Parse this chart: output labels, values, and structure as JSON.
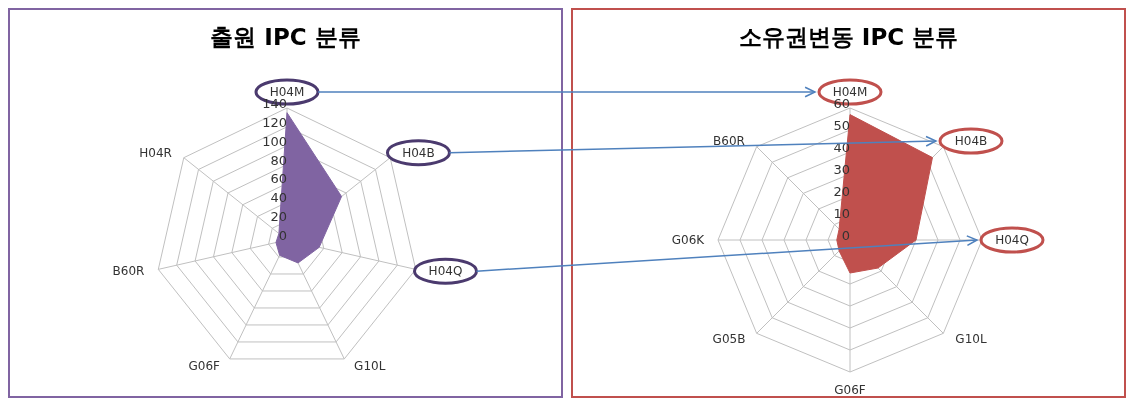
{
  "chart_data": [
    {
      "type": "radar",
      "title": "출원 IPC 분류",
      "categories": [
        "H04M",
        "H04B",
        "H04Q",
        "G10L",
        "G06F",
        "B60R",
        "H04R"
      ],
      "series": [
        {
          "color": "#8064a2",
          "values": [
            135,
            74,
            35,
            27,
            18,
            12,
            11
          ]
        }
      ],
      "ylim": [
        0,
        140
      ],
      "yticks": [
        0,
        20,
        40,
        60,
        80,
        100,
        120,
        140
      ]
    },
    {
      "type": "radar",
      "title": "소유권변동 IPC 분류",
      "categories": [
        "H04M",
        "H04B",
        "H04Q",
        "G10L",
        "G06F",
        "G05B",
        "G06K",
        "B60R"
      ],
      "series": [
        {
          "color": "#c0504d",
          "values": [
            57,
            53,
            30,
            18,
            15,
            7,
            6,
            7
          ]
        }
      ],
      "ylim": [
        0,
        60
      ],
      "yticks": [
        0,
        10,
        20,
        30,
        40,
        50,
        60
      ]
    }
  ]
}
